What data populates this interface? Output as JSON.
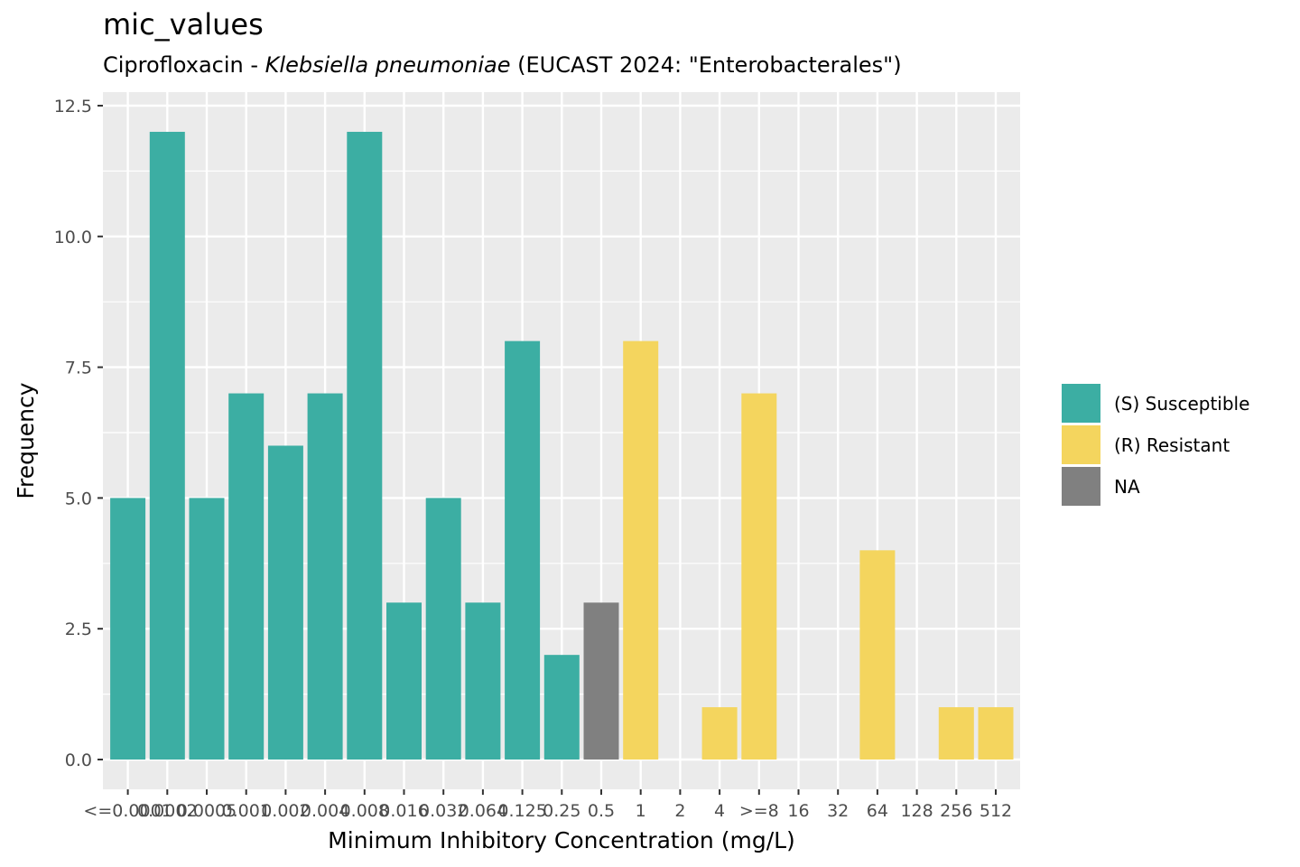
{
  "title": "mic_values",
  "subtitle": {
    "prefix": "Ciprofloxacin - ",
    "organism": "Klebsiella pneumoniae",
    "suffix": " (EUCAST 2024: \"Enterobacterales\")"
  },
  "colors": {
    "panel_background": "#ebebeb",
    "grid": "#ffffff",
    "susceptible": "#3caea3",
    "resistant": "#f4d55e",
    "na": "#808080"
  },
  "chart_data": {
    "type": "bar",
    "xlabel": "Minimum Inhibitory Concentration (mg/L)",
    "ylabel": "Frequency",
    "ylim": [
      0,
      12.5
    ],
    "yticks": [
      0.0,
      2.5,
      5.0,
      7.5,
      10.0,
      12.5
    ],
    "ytick_labels": [
      "0.0",
      "2.5",
      "5.0",
      "7.5",
      "10.0",
      "12.5"
    ],
    "grid": true,
    "legend_position": "right",
    "categories": [
      "<=0.0001",
      "0.0002",
      "0.0005",
      "0.001",
      "0.002",
      "0.004",
      "0.008",
      "0.016",
      "0.032",
      "0.064",
      "0.125",
      "0.25",
      "0.5",
      "1",
      "2",
      "4",
      ">=8",
      "16",
      "32",
      "64",
      "128",
      "256",
      "512"
    ],
    "values": [
      5,
      12,
      5,
      7,
      6,
      7,
      12,
      3,
      5,
      3,
      8,
      2,
      3,
      8,
      0,
      1,
      7,
      0,
      0,
      4,
      0,
      1,
      1
    ],
    "interpretation": [
      "S",
      "S",
      "S",
      "S",
      "S",
      "S",
      "S",
      "S",
      "S",
      "S",
      "S",
      "S",
      "NA",
      "R",
      "",
      "R",
      "R",
      "",
      "",
      "R",
      "",
      "R",
      "R"
    ],
    "legend": [
      {
        "key": "S",
        "label": "(S) Susceptible"
      },
      {
        "key": "R",
        "label": "(R) Resistant"
      },
      {
        "key": "NA",
        "label": "NA"
      }
    ]
  }
}
